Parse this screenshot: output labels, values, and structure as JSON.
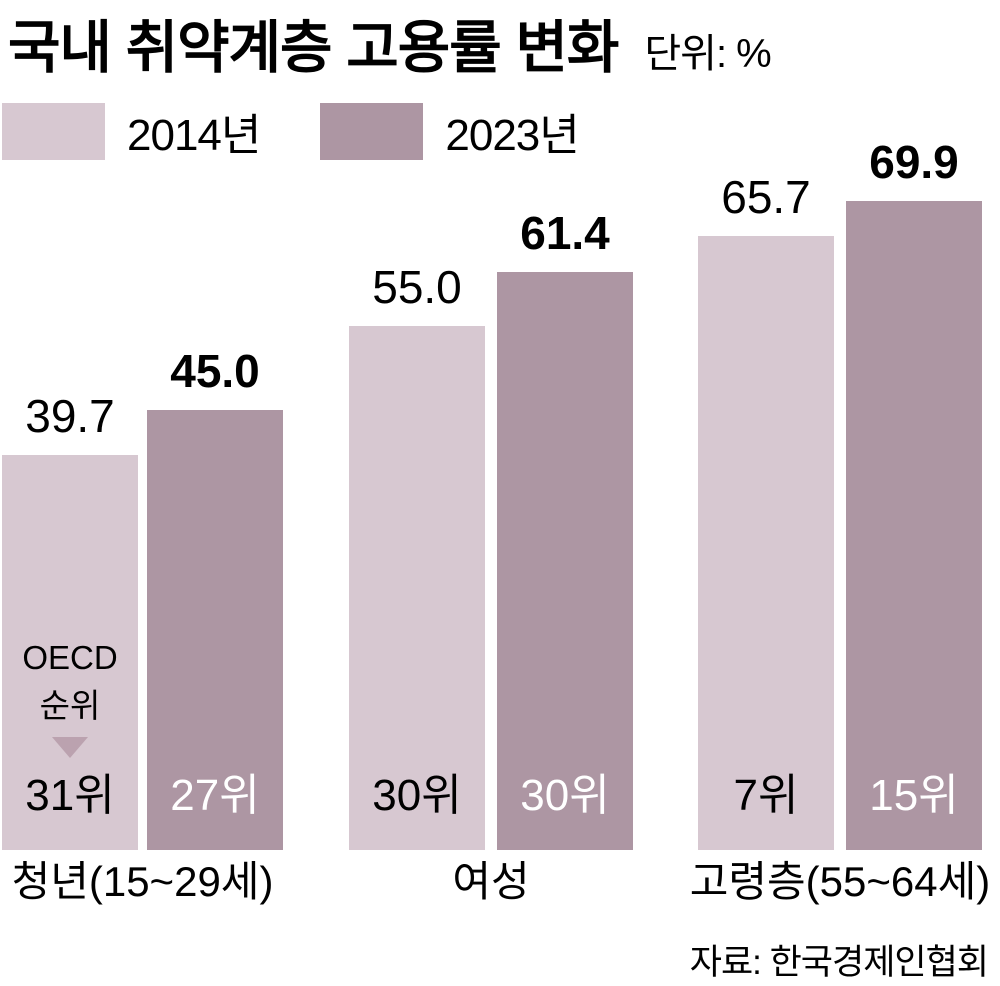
{
  "title": "국내 취약계층 고용률 변화",
  "unit_label": "단위: %",
  "legend": [
    {
      "label": "2014년",
      "color": "#d7c8d1"
    },
    {
      "label": "2023년",
      "color": "#ad96a3"
    }
  ],
  "oecd_annotation": {
    "line1": "OECD",
    "line2": "순위"
  },
  "source": "자료: 한국경제인협회",
  "colors": {
    "bar_2014": "#d7c8d1",
    "bar_2023": "#ad96a3",
    "arrow": "#bba2af",
    "rank_text_on_2014": "#000000",
    "rank_text_on_2023": "#ffffff"
  },
  "chart_data": {
    "type": "bar",
    "title": "국내 취약계층 고용률 변화",
    "unit": "%",
    "categories": [
      "청년(15~29세)",
      "여성",
      "고령층(55~64세)"
    ],
    "series": [
      {
        "name": "2014년",
        "color": "#d7c8d1",
        "values": [
          39.7,
          55.0,
          65.7
        ],
        "value_labels": [
          "39.7",
          "55.0",
          "65.7"
        ],
        "oecd_rank_labels": [
          "31위",
          "30위",
          "7위"
        ]
      },
      {
        "name": "2023년",
        "color": "#ad96a3",
        "values": [
          45.0,
          61.4,
          69.9
        ],
        "value_labels": [
          "45.0",
          "61.4",
          "69.9"
        ],
        "oecd_rank_labels": [
          "27위",
          "30위",
          "15위"
        ]
      }
    ],
    "annotation": "OECD 순위 (shown at bottom of each bar)",
    "legend_position": "top-left",
    "grid": false,
    "ylim": [
      0,
      75
    ]
  }
}
